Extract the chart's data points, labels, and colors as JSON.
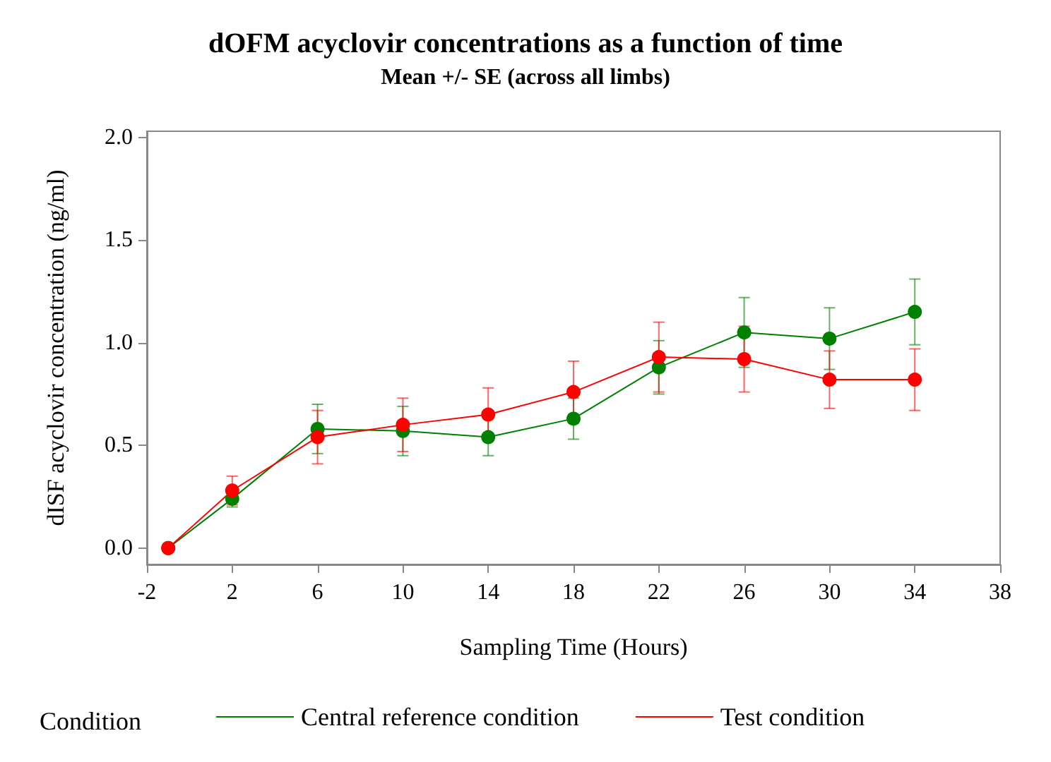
{
  "chart_data": {
    "type": "line",
    "title": "dOFM acyclovir concentrations as a function of time",
    "subtitle": "Mean +/- SE (across all limbs)",
    "xlabel": "Sampling Time (Hours)",
    "ylabel": "dISF acyclovir concentration (ng/ml)",
    "legend_title": "Condition",
    "legend": "bottom",
    "marker": "circle",
    "line_style": "solid",
    "grid": false,
    "x": [
      -1,
      2,
      6,
      10,
      14,
      18,
      22,
      26,
      30,
      34
    ],
    "series": [
      {
        "name": "Central reference condition",
        "color": "#008000",
        "values": [
          0.0,
          0.24,
          0.58,
          0.57,
          0.54,
          0.63,
          0.88,
          1.05,
          1.02,
          1.15
        ],
        "errors": [
          null,
          0.04,
          0.12,
          0.12,
          0.09,
          0.1,
          0.13,
          0.17,
          0.15,
          0.16
        ]
      },
      {
        "name": "Test condition",
        "color": "#ff0000",
        "values": [
          0.0,
          0.28,
          0.54,
          0.6,
          0.65,
          0.76,
          0.93,
          0.92,
          0.82,
          0.82
        ],
        "errors": [
          null,
          0.07,
          0.13,
          0.13,
          0.13,
          0.15,
          0.17,
          0.16,
          0.14,
          0.15
        ]
      }
    ],
    "xlim": [
      -2,
      38
    ],
    "xticks": [
      -2,
      2,
      6,
      10,
      14,
      18,
      22,
      26,
      30,
      34,
      38
    ],
    "ylim": [
      -0.08,
      2.03
    ],
    "yticks": [
      {
        "value": 0,
        "label": "0.0"
      },
      {
        "value": 0.5,
        "label": "0.5"
      },
      {
        "value": 1,
        "label": "1.0"
      },
      {
        "value": 1.5,
        "label": "1.5"
      },
      {
        "value": 2,
        "label": "2.0"
      }
    ]
  }
}
